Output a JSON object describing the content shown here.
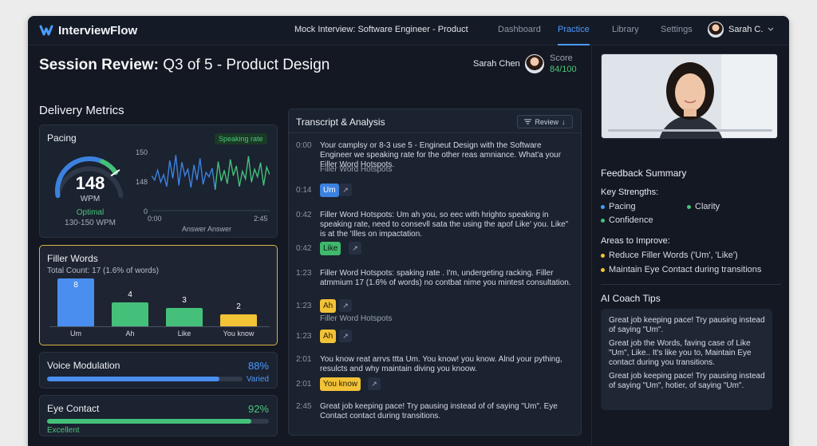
{
  "app": {
    "name": "InterviewFlow",
    "breadcrumb": "Mock Interview: Software Engineer - Product"
  },
  "nav": [
    {
      "label": "Dashboard"
    },
    {
      "label": "Practice"
    },
    {
      "label": "Library"
    },
    {
      "label": "Settings"
    }
  ],
  "user": {
    "name": "Sarah C."
  },
  "session": {
    "title_bold": "Session Review:",
    "title_rest": " Q3 of 5 - Product Design",
    "candidate": "Sarah Chen",
    "score_label": "Score",
    "score_value": "84/100"
  },
  "delivery": {
    "heading": "Delivery Metrics"
  },
  "pacing": {
    "title": "Pacing",
    "badge": "Speaking rate",
    "wpm_value": "148",
    "wpm_unit": "WPM",
    "status": "Optimal",
    "range": "130-150 WPM",
    "gauge_fraction": 0.78,
    "chart": {
      "y_max": "150",
      "y_mid": "148",
      "y_min": "0",
      "x_start": "0:00",
      "x_end": "2:45",
      "x_label": "Answer Answer",
      "values": [
        60,
        52,
        70,
        48,
        62,
        40,
        88,
        55,
        98,
        42,
        85,
        60,
        72,
        38,
        80,
        52,
        92,
        44,
        66,
        58,
        74,
        34,
        86,
        50,
        70,
        45,
        90,
        60,
        78,
        40,
        68,
        54,
        96,
        48,
        72,
        58,
        84,
        42,
        76,
        62
      ]
    }
  },
  "filler": {
    "title": "Filler Words",
    "total": "Total Count: 17 (1.6% of words)",
    "chart_data": {
      "type": "bar",
      "categories": [
        "Um",
        "Ah",
        "Like",
        "You know"
      ],
      "values": [
        8,
        4,
        3,
        2
      ],
      "colors": [
        "#4a8ef0",
        "#45c07a",
        "#45c07a",
        "#f2c237"
      ],
      "ylim": [
        0,
        9
      ]
    }
  },
  "voice": {
    "title": "Voice Modulation",
    "value": "88%",
    "status": "Varied",
    "fraction": 0.88,
    "color": "#4a8ef0"
  },
  "eye": {
    "title": "Eye Contact",
    "value": "92%",
    "status": "Excellent",
    "fraction": 0.92,
    "color": "#45c07a"
  },
  "transcript": {
    "title": "Transcript & Analysis",
    "review": "Review",
    "rows": [
      {
        "ts": "0:00",
        "text": "Your camplsy or 8-3 use 5 - Engineut  Design with the Software Engineer we speaking rate for the other reas amniance. What'a your Filler Word Hotspots.",
        "sub": "Filler Word Hotspots"
      },
      {
        "ts": "0:14",
        "tag": "Um",
        "tag_color": "#3b82e0",
        "tag_text": "#ffffff"
      },
      {
        "ts": "0:42",
        "text": "Filler Word Hotspots: Um ah you, so eec with hrighto speaking in speaking rate, need to consevll sata the using the apof Like' you. Like\" is at the 'Illes on impactation."
      },
      {
        "ts": "0:42",
        "tag": "Like",
        "tag_color": "#3fb86d",
        "tag_text": "#0d1a12"
      },
      {
        "ts": "1:23",
        "text": "Filler Word Hotspots: spaking rate . I'm, undergeting racking. Filler atmmium 17 (1.6% of words) no contbat nime you mintest consultation."
      },
      {
        "ts": "1:23",
        "tag": "Ah",
        "tag_color": "#f2c237",
        "tag_text": "#2a2108",
        "sub": "Filler Word Hotspots"
      },
      {
        "ts": "1:23",
        "tag": "Ah",
        "tag_color": "#f2c237",
        "tag_text": "#2a2108"
      },
      {
        "ts": "2:01",
        "text": "You know reat arrvs ttta Um. You know! you know. Alnd your pything, resulcts and why maintain diving you knoow."
      },
      {
        "ts": "2:01",
        "tag": "You know",
        "tag_color": "#f2c237",
        "tag_text": "#2a2108"
      },
      {
        "ts": "2:45",
        "text": "Great job keeping pace! Try pausing instead of of saying \"Um\". Eye Contact contact during transitions."
      }
    ]
  },
  "feedback": {
    "title": "Feedback Summary",
    "strengths_title": "Key Strengths:",
    "strengths": [
      "Pacing",
      "Clarity",
      "Confidence"
    ],
    "improve_title": "Areas to Improve:",
    "improve": [
      "Reduce Filler Words ('Um', 'Like')",
      "Maintain Eye Contact during transitions"
    ]
  },
  "coach": {
    "title": "AI Coach Tips",
    "tips": [
      "Great job keeping pace! Try pausing instead of saying \"Um\".",
      "Great job the Words, faving case of Like \"Um\", Like.. It's like you to, Maintain Eye contact during you transitions.",
      "Great job keeping pace! Try pausing instead of saying \"Um\", hotier, of saying \"Um\"."
    ]
  },
  "icons": {
    "logo": "wave-logo-icon",
    "chevron": "chevron-down-icon",
    "link": "external-link-icon",
    "sort": "sort-icon"
  }
}
